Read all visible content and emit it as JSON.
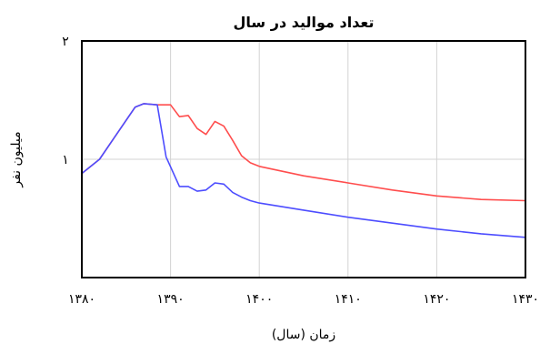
{
  "chart_data": {
    "type": "line",
    "title": "تعداد موالید در سال",
    "xlabel": "زمان (سال)",
    "ylabel": "میلیون نفر",
    "xlim": [
      1380,
      1430
    ],
    "ylim": [
      0,
      2
    ],
    "x_ticks": [
      1380,
      1390,
      1400,
      1410,
      1420,
      1430
    ],
    "x_tick_labels": [
      "۱۳۸۰",
      "۱۳۹۰",
      "۱۴۰۰",
      "۱۴۱۰",
      "۱۴۲۰",
      "۱۴۳۰"
    ],
    "y_ticks": [
      1,
      2
    ],
    "y_tick_labels": [
      "۱",
      "۲"
    ],
    "grid": true,
    "series": [
      {
        "color": "#ff4d4d",
        "x": [
          1380,
          1382,
          1384,
          1386,
          1387,
          1388.5,
          1390,
          1391,
          1392,
          1393,
          1394,
          1395,
          1396,
          1397,
          1398,
          1399,
          1400,
          1405,
          1410,
          1415,
          1420,
          1425,
          1430
        ],
        "y": [
          0.88,
          1.0,
          1.22,
          1.44,
          1.47,
          1.46,
          1.46,
          1.36,
          1.37,
          1.26,
          1.21,
          1.32,
          1.28,
          1.16,
          1.03,
          0.97,
          0.94,
          0.86,
          0.8,
          0.74,
          0.69,
          0.66,
          0.65
        ]
      },
      {
        "color": "#4d4dff",
        "x": [
          1380,
          1382,
          1384,
          1386,
          1387,
          1388.5,
          1389.5,
          1391,
          1392,
          1393,
          1394,
          1395,
          1396,
          1397,
          1398,
          1399,
          1400,
          1405,
          1410,
          1415,
          1420,
          1425,
          1430
        ],
        "y": [
          0.88,
          1.0,
          1.22,
          1.44,
          1.47,
          1.46,
          1.02,
          0.77,
          0.77,
          0.73,
          0.74,
          0.8,
          0.79,
          0.72,
          0.68,
          0.65,
          0.63,
          0.57,
          0.51,
          0.46,
          0.41,
          0.37,
          0.34
        ]
      }
    ]
  }
}
